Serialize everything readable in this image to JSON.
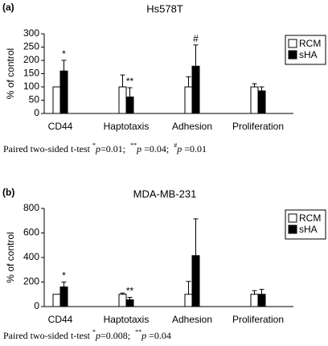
{
  "chart_data": [
    {
      "type": "bar",
      "panel_label": "(a)",
      "title": "Hs578T",
      "ylabel": "% of control",
      "categories": [
        "CD44",
        "Haptotaxis",
        "Adhesion",
        "Proliferation"
      ],
      "series": [
        {
          "name": "RCM",
          "color": "#ffffff",
          "values": [
            100,
            100,
            100,
            100
          ],
          "errors": [
            null,
            45,
            38,
            12
          ]
        },
        {
          "name": "sHA",
          "color": "#000000",
          "values": [
            160,
            62,
            178,
            85
          ],
          "errors": [
            40,
            35,
            80,
            15
          ]
        }
      ],
      "annotations": [
        "*",
        "**",
        "#",
        null
      ],
      "ylim": [
        0,
        300
      ],
      "yticks": [
        0,
        50,
        100,
        150,
        200,
        250,
        300
      ],
      "grid": false,
      "legend": "upper right",
      "footnote": [
        "Paired two-sided t-test ",
        "*",
        "p",
        "=0.01;  ",
        "**",
        "p",
        " =0.04;  ",
        "#",
        "p",
        " =0.01"
      ]
    },
    {
      "type": "bar",
      "panel_label": "(b)",
      "title": "MDA-MB-231",
      "ylabel": "% of control",
      "categories": [
        "CD44",
        "Haptotaxis",
        "Adhesion",
        "Proliferation"
      ],
      "series": [
        {
          "name": "RCM",
          "color": "#ffffff",
          "values": [
            100,
            100,
            100,
            100
          ],
          "errors": [
            null,
            10,
            105,
            30
          ]
        },
        {
          "name": "sHA",
          "color": "#000000",
          "values": [
            160,
            55,
            415,
            100
          ],
          "errors": [
            40,
            20,
            300,
            40
          ]
        }
      ],
      "annotations": [
        "*",
        "**",
        null,
        null
      ],
      "ylim": [
        0,
        800
      ],
      "yticks": [
        0,
        200,
        400,
        600,
        800
      ],
      "grid": false,
      "legend": "upper right",
      "footnote": [
        "Paired two-sided t-test ",
        "*",
        "p",
        "=0.008;  ",
        "**",
        "p",
        " =0.04"
      ]
    }
  ]
}
